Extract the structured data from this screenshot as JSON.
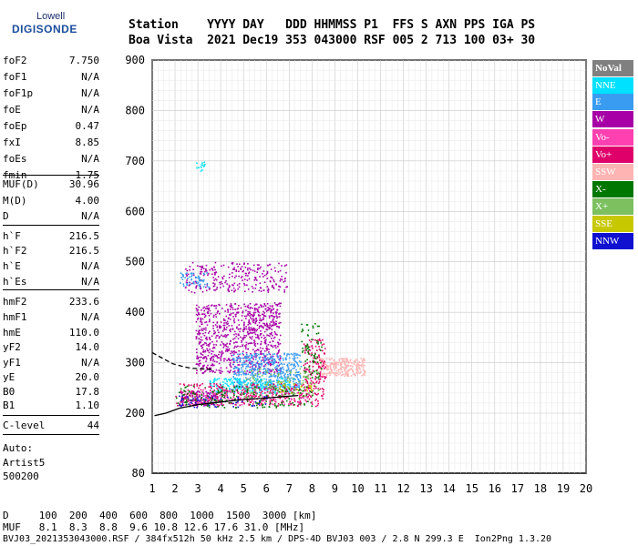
{
  "brand": {
    "top": "Lowell",
    "main": "DIGISONDE"
  },
  "header": {
    "line1": "Station    YYYY DAY   DDD HHMMSS P1  FFS S AXN PPS IGA PS",
    "line2": "Boa Vista  2021 Dec19 353 043000 RSF 005 2 713 100 03+ 30"
  },
  "params": [
    {
      "label": "foF2",
      "value": "7.750"
    },
    {
      "label": "foF1",
      "value": "N/A"
    },
    {
      "label": "foF1p",
      "value": "N/A"
    },
    {
      "label": "foE",
      "value": "N/A"
    },
    {
      "label": "foEp",
      "value": "0.47"
    },
    {
      "label": "fxI",
      "value": "8.85"
    },
    {
      "label": "foEs",
      "value": "N/A"
    },
    {
      "label": "fmin",
      "value": "1.75"
    },
    {
      "label": "MUF(D)",
      "value": "30.96"
    },
    {
      "label": "M(D)",
      "value": "4.00"
    },
    {
      "label": "D",
      "value": "N/A"
    },
    {
      "label": "h`F",
      "value": "216.5"
    },
    {
      "label": "h`F2",
      "value": "216.5"
    },
    {
      "label": "h`E",
      "value": "N/A"
    },
    {
      "label": "h`Es",
      "value": "N/A"
    },
    {
      "label": "hmF2",
      "value": "233.6"
    },
    {
      "label": "hmF1",
      "value": "N/A"
    },
    {
      "label": "hmE",
      "value": "110.0"
    },
    {
      "label": "yF2",
      "value": "14.0"
    },
    {
      "label": "yF1",
      "value": "N/A"
    },
    {
      "label": "yE",
      "value": "20.0"
    },
    {
      "label": "B0",
      "value": "17.8"
    },
    {
      "label": "B1",
      "value": "1.10"
    },
    {
      "label": "C-level",
      "value": "44"
    }
  ],
  "auto": [
    "Auto:",
    "Artist5",
    "500200"
  ],
  "legend": [
    {
      "label": "NoVal",
      "bg": "#808080",
      "fg": "#ffffff",
      "bold": true
    },
    {
      "label": "NNE",
      "bg": "#00e0ff",
      "fg": "#ffffff"
    },
    {
      "label": "E",
      "bg": "#3a9cf0",
      "fg": "#ffffff"
    },
    {
      "label": "W",
      "bg": "#a600a6",
      "fg": "#ffffff"
    },
    {
      "label": "Vo-",
      "bg": "#ff40b0",
      "fg": "#ffffff"
    },
    {
      "label": "Vo+",
      "bg": "#e0006a",
      "fg": "#ffffff"
    },
    {
      "label": "SSW",
      "bg": "#ffb4b4",
      "fg": "#ffffff"
    },
    {
      "label": "X-",
      "bg": "#007800",
      "fg": "#ffffff"
    },
    {
      "label": "X+",
      "bg": "#7cc060",
      "fg": "#ffffff"
    },
    {
      "label": "SSE",
      "bg": "#c8c800",
      "fg": "#ffffff"
    },
    {
      "label": "NNW",
      "bg": "#1010d0",
      "fg": "#ffffff"
    }
  ],
  "footer": {
    "line1": "D     100  200  400  600  800  1000  1500  3000 [km]",
    "line2": "MUF   8.1  8.3  8.8  9.6 10.8 12.6 17.6 31.0 [MHz]",
    "line3": "BVJ03_2021353043000.RSF / 384fx512h 50 kHz 2.5 km / DPS-4D BVJ03 003 / 2.8 N 299.3 E  Ion2Png 1.3.20"
  },
  "chart_data": {
    "type": "scatter",
    "title": "",
    "xlabel": "",
    "ylabel": "",
    "xlim": [
      1,
      20
    ],
    "ylim": [
      80,
      900
    ],
    "x_ticks": [
      1,
      2,
      3,
      4,
      5,
      6,
      7,
      8,
      9,
      10,
      11,
      12,
      13,
      14,
      15,
      16,
      17,
      18,
      19,
      20
    ],
    "y_ticks": [
      80,
      200,
      300,
      400,
      500,
      600,
      700,
      800,
      900
    ],
    "grid": true,
    "series": [
      {
        "name": "W",
        "color": "#a600a6",
        "regions": [
          {
            "x": [
              2.9,
              6.6
            ],
            "y": [
              280,
              420
            ],
            "density": 900
          },
          {
            "x": [
              2.4,
              6.9
            ],
            "y": [
              440,
              500
            ],
            "density": 260
          },
          {
            "x": [
              2.2,
              4.0
            ],
            "y": [
              215,
              245
            ],
            "density": 150
          }
        ]
      },
      {
        "name": "E",
        "color": "#3a9cf0",
        "regions": [
          {
            "x": [
              4.5,
              7.5
            ],
            "y": [
              250,
              320
            ],
            "density": 500
          },
          {
            "x": [
              2.2,
              3.5
            ],
            "y": [
              450,
              480
            ],
            "density": 60
          }
        ]
      },
      {
        "name": "NNE",
        "color": "#00e0ff",
        "regions": [
          {
            "x": [
              3.5,
              7.2
            ],
            "y": [
              240,
              270
            ],
            "density": 220
          },
          {
            "x": [
              2.9,
              3.3
            ],
            "y": [
              680,
              700
            ],
            "density": 15
          }
        ]
      },
      {
        "name": "SSW",
        "color": "#ffb4b4",
        "regions": [
          {
            "x": [
              8.3,
              10.3
            ],
            "y": [
              275,
              310
            ],
            "density": 260
          }
        ]
      },
      {
        "name": "Vo+",
        "color": "#e0006a",
        "regions": [
          {
            "x": [
              2.0,
              8.5
            ],
            "y": [
              215,
              260
            ],
            "density": 350
          },
          {
            "x": [
              7.6,
              8.6
            ],
            "y": [
              260,
              350
            ],
            "density": 120
          }
        ]
      },
      {
        "name": "X-",
        "color": "#007800",
        "regions": [
          {
            "x": [
              2.0,
              8.0
            ],
            "y": [
              212,
              255
            ],
            "density": 220
          },
          {
            "x": [
              7.5,
              8.4
            ],
            "y": [
              270,
              380
            ],
            "density": 70
          }
        ]
      },
      {
        "name": "X+",
        "color": "#7cc060",
        "regions": [
          {
            "x": [
              5.0,
              8.4
            ],
            "y": [
              230,
              290
            ],
            "density": 120
          }
        ]
      },
      {
        "name": "Vo-",
        "color": "#ff40b0",
        "regions": [
          {
            "x": [
              2.5,
              8.0
            ],
            "y": [
              218,
              250
            ],
            "density": 120
          }
        ]
      },
      {
        "name": "NNW",
        "color": "#1010d0",
        "regions": [
          {
            "x": [
              2.0,
              6.0
            ],
            "y": [
              212,
              235
            ],
            "density": 60
          }
        ]
      },
      {
        "name": "SSE",
        "color": "#c8c800",
        "regions": [
          {
            "x": [
              6.5,
              8.0
            ],
            "y": [
              240,
              265
            ],
            "density": 30
          }
        ]
      }
    ],
    "traces": [
      {
        "name": "o-trace",
        "style": "solid",
        "x": [
          1.1,
          1.6,
          2.2,
          3.0,
          4.0,
          5.0,
          6.0,
          6.8,
          7.4
        ],
        "y": [
          195,
          200,
          210,
          217,
          222,
          227,
          230,
          233,
          235
        ]
      },
      {
        "name": "profile",
        "style": "dashed",
        "x": [
          1.0,
          1.4,
          1.9,
          2.3,
          2.7,
          3.1,
          3.6
        ],
        "y": [
          320,
          310,
          298,
          293,
          289,
          288,
          287
        ]
      }
    ]
  }
}
